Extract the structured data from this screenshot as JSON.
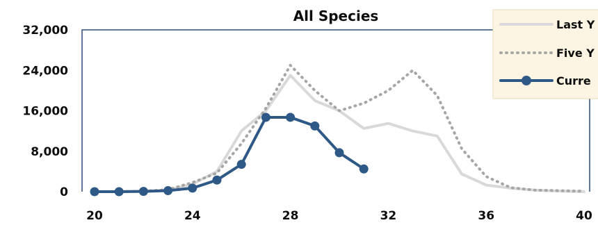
{
  "chart_data": {
    "type": "line",
    "title": "All Species",
    "xlabel": "",
    "ylabel": "",
    "xlim": [
      20,
      40
    ],
    "ylim": [
      0,
      32000
    ],
    "x_ticks": [
      "20",
      "24",
      "28",
      "32",
      "36",
      "40"
    ],
    "y_ticks": [
      "0",
      "8,000",
      "16,000",
      "24,000",
      "32,000"
    ],
    "grid": false,
    "legend_position": "top-right",
    "legend_partially_visible": true,
    "colors": {
      "last_year": "#d9d9d9",
      "five_year": "#a6a6a6",
      "current": "#2e5986",
      "legend_bg": "#fcf5e3",
      "plot_border": "#2e4d7f"
    },
    "series": [
      {
        "name": "Last Y",
        "style": "solid",
        "x": [
          20,
          21,
          22,
          23,
          24,
          25,
          26,
          27,
          28,
          29,
          30,
          31,
          32,
          33,
          34,
          35,
          36,
          37,
          38,
          39,
          40
        ],
        "y": [
          0,
          0,
          100,
          300,
          1500,
          4000,
          12000,
          16000,
          23000,
          18000,
          16000,
          12500,
          13500,
          12000,
          11000,
          3500,
          1300,
          700,
          300,
          100,
          0
        ]
      },
      {
        "name": "Five Y",
        "style": "dotted",
        "x": [
          20,
          21,
          22,
          23,
          24,
          25,
          26,
          27,
          28,
          29,
          30,
          31,
          32,
          33,
          34,
          35,
          36,
          37,
          38,
          39,
          40
        ],
        "y": [
          0,
          0,
          100,
          400,
          1800,
          3700,
          9500,
          16500,
          25000,
          20000,
          16000,
          17500,
          20000,
          24000,
          19000,
          8500,
          3000,
          800,
          300,
          200,
          100
        ]
      },
      {
        "name": "Curre",
        "style": "solid-markers",
        "x": [
          20,
          21,
          22,
          23,
          24,
          25,
          26,
          27,
          28,
          29,
          30,
          31
        ],
        "y": [
          0,
          0,
          50,
          200,
          700,
          2300,
          5400,
          14700,
          14700,
          13000,
          7700,
          4500
        ]
      }
    ]
  }
}
